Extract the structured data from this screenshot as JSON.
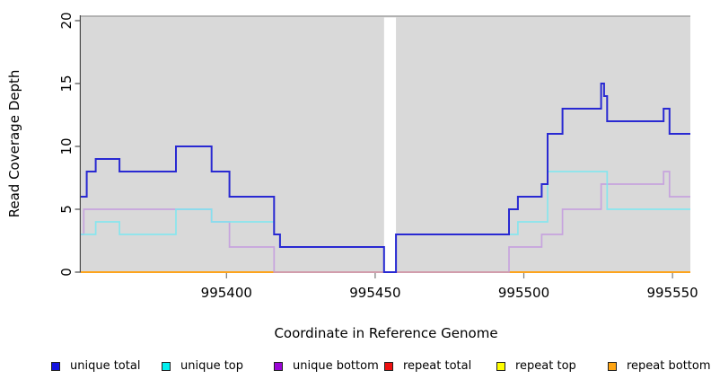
{
  "figure": {
    "xlabel": "Coordinate in Reference Genome",
    "ylabel": "Read Coverage Depth"
  },
  "chart_data": {
    "type": "line",
    "subtype": "step-after",
    "title": "",
    "xlabel": "Coordinate in Reference Genome",
    "ylabel": "Read Coverage Depth",
    "xlim": [
      995351,
      995556
    ],
    "ylim": [
      0,
      20
    ],
    "xticks": [
      995400,
      995450,
      995500,
      995550
    ],
    "yticks": [
      0,
      5,
      10,
      15,
      20
    ],
    "grid": false,
    "legend_position": "bottom",
    "panel_background": "#d9d9d9",
    "gap_region": {
      "from": 995453,
      "to": 995457
    },
    "series": [
      {
        "name": "unique total",
        "line_color": "#2929d2",
        "swatch_color": "#1414e0",
        "opacity": 1,
        "width": 2,
        "draw_order": 6,
        "points": [
          [
            995351,
            6
          ],
          [
            995353,
            8
          ],
          [
            995356,
            9
          ],
          [
            995364,
            8
          ],
          [
            995383,
            10
          ],
          [
            995395,
            8
          ],
          [
            995401,
            6
          ],
          [
            995416,
            3
          ],
          [
            995418,
            2
          ],
          [
            995453,
            0
          ],
          [
            995457,
            3
          ],
          [
            995495,
            5
          ],
          [
            995498,
            6
          ],
          [
            995506,
            7
          ],
          [
            995508,
            11
          ],
          [
            995513,
            13
          ],
          [
            995526,
            15
          ],
          [
            995527,
            14
          ],
          [
            995528,
            12
          ],
          [
            995547,
            13
          ],
          [
            995549,
            11
          ]
        ]
      },
      {
        "name": "unique top",
        "line_color": "#7ee7ef",
        "swatch_color": "#00efef",
        "opacity": 0.9,
        "width": 1.7,
        "draw_order": 5,
        "points": [
          [
            995351,
            3
          ],
          [
            995356,
            4
          ],
          [
            995364,
            3
          ],
          [
            995383,
            5
          ],
          [
            995395,
            4
          ],
          [
            995416,
            3
          ],
          [
            995418,
            2
          ],
          [
            995453,
            0
          ],
          [
            995457,
            3
          ],
          [
            995498,
            4
          ],
          [
            995508,
            8
          ],
          [
            995528,
            5
          ]
        ]
      },
      {
        "name": "unique bottom",
        "line_color": "#c39ade",
        "swatch_color": "#9b06d6",
        "opacity": 0.85,
        "width": 1.7,
        "draw_order": 4,
        "points": [
          [
            995351,
            3
          ],
          [
            995352,
            5
          ],
          [
            995395,
            4
          ],
          [
            995401,
            2
          ],
          [
            995416,
            0
          ],
          [
            995495,
            2
          ],
          [
            995506,
            3
          ],
          [
            995513,
            5
          ],
          [
            995526,
            7
          ],
          [
            995547,
            8
          ],
          [
            995549,
            6
          ]
        ]
      },
      {
        "name": "repeat total",
        "line_color": "#d42a2a",
        "swatch_color": "#ee1111",
        "opacity": 1,
        "width": 1.7,
        "draw_order": 1,
        "points": [
          [
            995351,
            0
          ]
        ]
      },
      {
        "name": "repeat top",
        "line_color": "#f5ef2a",
        "swatch_color": "#ffff00",
        "opacity": 1,
        "width": 1.7,
        "draw_order": 2,
        "points": [
          [
            995351,
            0
          ]
        ]
      },
      {
        "name": "repeat bottom",
        "line_color": "#ff9f1a",
        "swatch_color": "#ffa513",
        "opacity": 1,
        "width": 1.7,
        "draw_order": 3,
        "points": [
          [
            995351,
            0
          ]
        ]
      }
    ]
  }
}
